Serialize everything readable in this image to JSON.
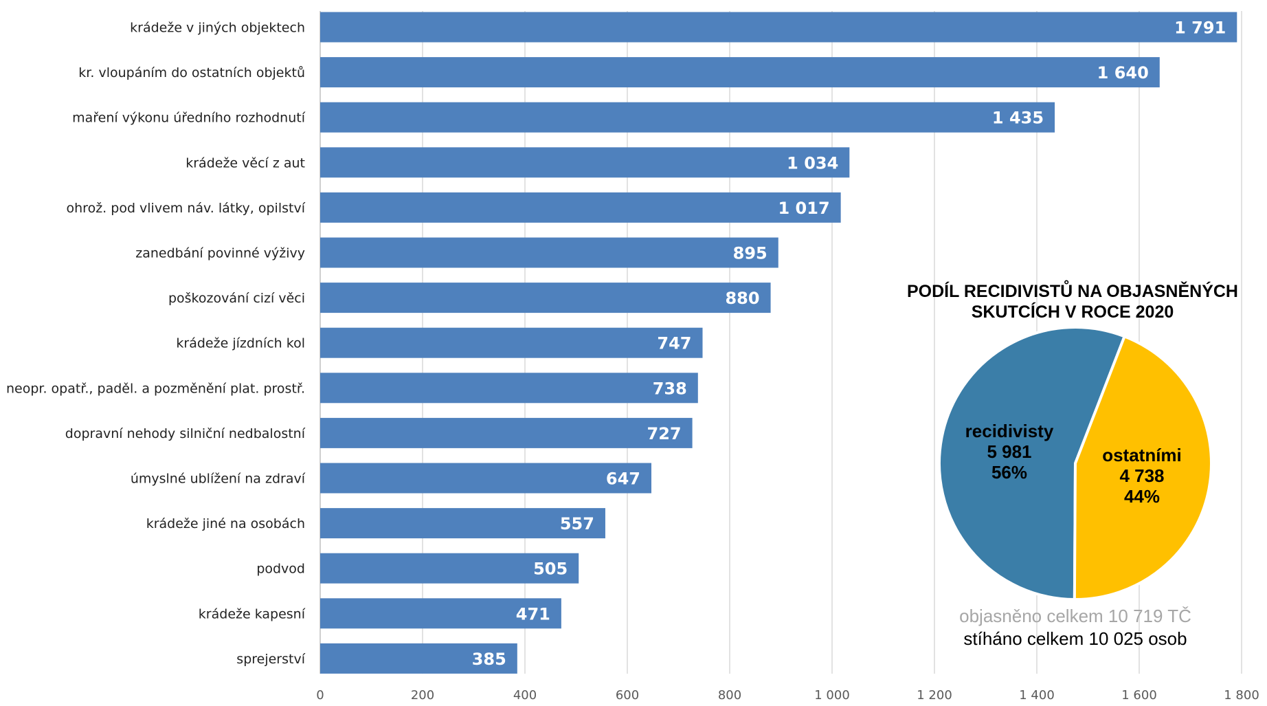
{
  "chart_data": [
    {
      "type": "bar",
      "orientation": "horizontal",
      "categories": [
        "krádeže v jiných objektech",
        "kr. vloupáním do ostatních objektů",
        "maření výkonu úředního rozhodnutí",
        "krádeže věcí z aut",
        "ohrož. pod vlivem náv. látky, opilství",
        "zanedbání povinné výživy",
        "poškozování cizí věci",
        "krádeže jízdních kol",
        "neopr. opatř., paděl. a pozměnění plat. prostř.",
        "dopravní nehody silniční nedbalostní",
        "úmyslné ublížení na zdraví",
        "krádeže jiné na osobách",
        "podvod",
        "krádeže kapesní",
        "sprejerství"
      ],
      "values": [
        1791,
        1640,
        1435,
        1034,
        1017,
        895,
        880,
        747,
        738,
        727,
        647,
        557,
        505,
        471,
        385
      ],
      "value_labels": [
        "1 791",
        "1 640",
        "1 435",
        "1 034",
        "1 017",
        "895",
        "880",
        "747",
        "738",
        "727",
        "647",
        "557",
        "505",
        "471",
        "385"
      ],
      "xlim": [
        0,
        1800
      ],
      "x_ticks": [
        0,
        200,
        400,
        600,
        800,
        1000,
        1200,
        1400,
        1600,
        1800
      ],
      "x_tick_labels": [
        "0",
        "200",
        "400",
        "600",
        "800",
        "1 000",
        "1 200",
        "1 400",
        "1 600",
        "1 800"
      ],
      "grid": "vertical",
      "bar_color": "#4f81bd"
    },
    {
      "type": "pie",
      "title": "PODÍL RECIDIVISTŮ NA OBJASNĚNÝCH SKUTCÍCH V ROCE 2020",
      "title_lines": [
        "PODÍL RECIDIVISTŮ NA OBJASNĚNÝCH",
        "SKUTCÍCH V ROCE 2020"
      ],
      "slices": [
        {
          "name": "recidivisty",
          "value": 5981,
          "value_label": "5 981",
          "percent_label": "56%",
          "color": "#3b7ea8"
        },
        {
          "name": "ostatními",
          "value": 4738,
          "value_label": "4 738",
          "percent_label": "44%",
          "color": "#ffc000"
        }
      ],
      "notes": [
        "objasněno celkem 10 719 TČ",
        "stíháno celkem 10 025 osob"
      ]
    }
  ]
}
